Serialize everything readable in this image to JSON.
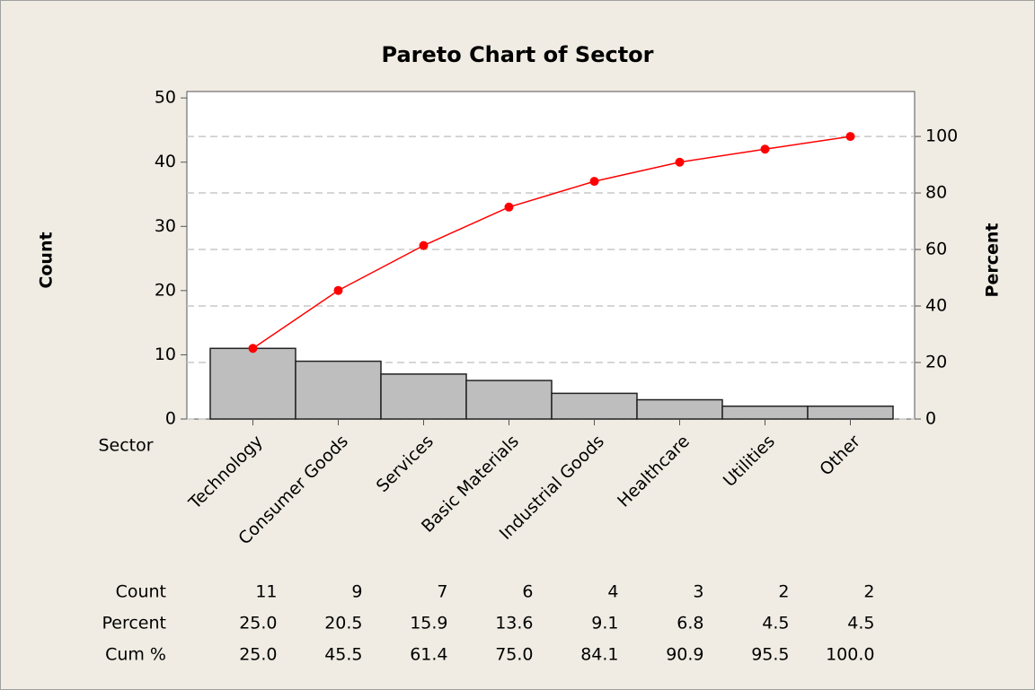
{
  "chart_data": {
    "type": "pareto",
    "title": "Pareto Chart of Sector",
    "x_label": "Sector",
    "y_label": "Count",
    "y2_label": "Percent",
    "categories": [
      "Technology",
      "Consumer Goods",
      "Services",
      "Basic Materials",
      "Industrial Goods",
      "Healthcare",
      "Utilities",
      "Other"
    ],
    "series": [
      {
        "name": "Count",
        "color": "#bebebe",
        "values": [
          11,
          9,
          7,
          6,
          4,
          3,
          2,
          2
        ]
      },
      {
        "name": "Cum %",
        "color": "#ff0000",
        "axis": "y2",
        "values": [
          25,
          45.5,
          61.4,
          75,
          84.1,
          90.9,
          95.5,
          100
        ],
        "value_labels": [
          "25.0",
          "45.5",
          "61.4",
          "75.0",
          "84.1",
          "90.9",
          "95.5",
          "100.0"
        ]
      }
    ],
    "percent": {
      "name": "Percent",
      "values": [
        25,
        20.5,
        15.9,
        13.6,
        9.1,
        6.8,
        4.5,
        4.5
      ],
      "value_labels": [
        "25.0",
        "20.5",
        "15.9",
        "13.6",
        "9.1",
        "6.8",
        "4.5",
        "4.5"
      ]
    },
    "ylim": [
      0,
      51
    ],
    "yticks": [
      0,
      10,
      20,
      30,
      40,
      50
    ],
    "y2lim": [
      0,
      115.9
    ],
    "y2ticks": [
      0,
      20,
      40,
      60,
      80,
      100
    ],
    "grid": true
  }
}
